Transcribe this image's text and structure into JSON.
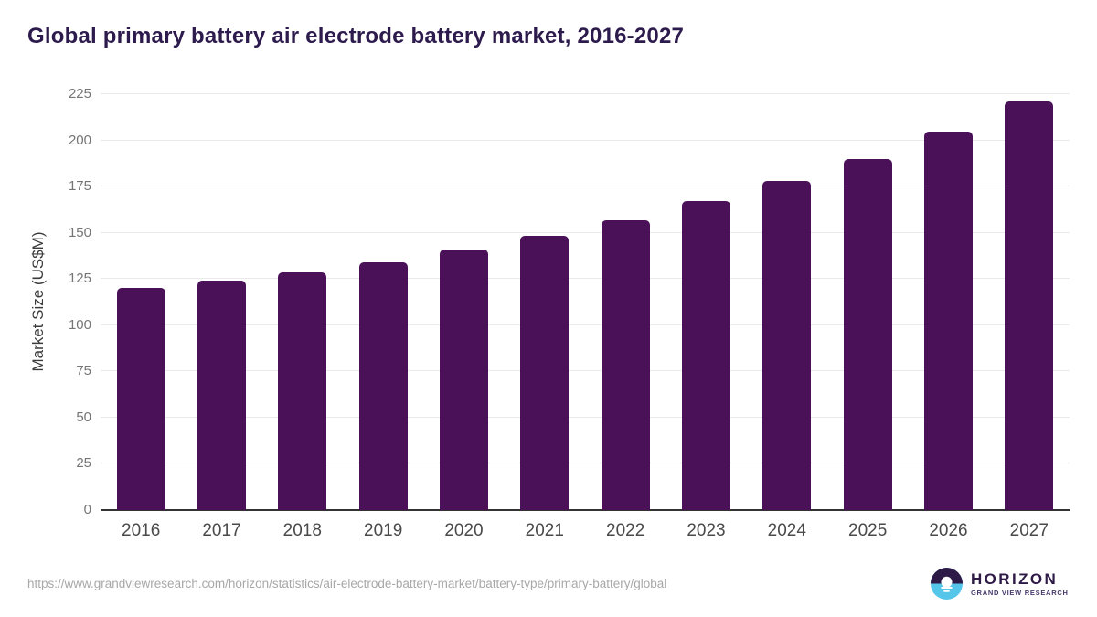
{
  "header": {
    "title": "Global primary battery air electrode battery market, 2016-2027"
  },
  "chart_data": {
    "type": "bar",
    "title": "Global primary battery air electrode battery market, 2016-2027",
    "categories": [
      "2016",
      "2017",
      "2018",
      "2019",
      "2020",
      "2021",
      "2022",
      "2023",
      "2024",
      "2025",
      "2026",
      "2027"
    ],
    "values": [
      120,
      124,
      128.5,
      134,
      141,
      148.5,
      157,
      167,
      178,
      190,
      204.5,
      221
    ],
    "xlabel": "",
    "ylabel": "Market Size (US$M)",
    "ylim": [
      0,
      225
    ],
    "ytick_step": 25,
    "yticks": [
      0,
      25,
      50,
      75,
      100,
      125,
      150,
      175,
      200,
      225
    ],
    "grid": true,
    "legend": "none",
    "bar_color": "#4a1159"
  },
  "footer": {
    "source_url": "https://www.grandviewresearch.com/horizon/statistics/air-electrode-battery-market/battery-type/primary-battery/global",
    "logo_title": "HORIZON",
    "logo_subtitle": "GRAND VIEW RESEARCH"
  },
  "colors": {
    "title_text": "#2d1b4e",
    "bar": "#4a1159",
    "gridline": "#e9e9e9",
    "axis_line": "#333333",
    "x_label": "#4a4a4a",
    "y_tick_label": "#757575",
    "y_axis_title": "#3b3b3b",
    "source_url_text": "#a8a8a8",
    "logo_dark_purple": "#2e1a47",
    "logo_light_blue": "#56c5ea"
  }
}
